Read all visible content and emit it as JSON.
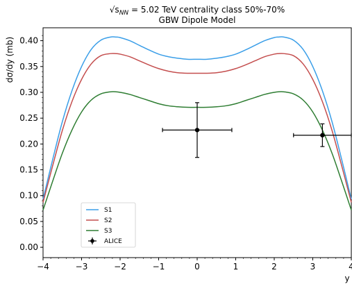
{
  "chart_data": {
    "type": "line",
    "title_prefix": "√s",
    "title_subscript": "NN",
    "title_rest": " = 5.02 TeV centrality class 50%-70%",
    "subtitle": "GBW Dipole Model",
    "xlabel": "y",
    "ylabel": "dσ/dy (mb)",
    "xlim": [
      -4,
      4
    ],
    "ylim": [
      -0.02,
      0.425
    ],
    "xticks": [
      "−4",
      "−3",
      "−2",
      "−1",
      "0",
      "1",
      "2",
      "3",
      "4"
    ],
    "yticks": [
      "0.00",
      "0.05",
      "0.10",
      "0.15",
      "0.20",
      "0.25",
      "0.30",
      "0.35",
      "0.40"
    ],
    "legend_position": "lower-left",
    "series": [
      {
        "name": "S1",
        "color": "#3a9ee8",
        "x": [
          -4.0,
          -3.75,
          -3.5,
          -3.25,
          -3.0,
          -2.75,
          -2.5,
          -2.25,
          -2.1,
          -2.0,
          -1.75,
          -1.5,
          -1.25,
          -1.0,
          -0.75,
          -0.5,
          -0.25,
          0.0,
          0.25,
          0.5,
          0.75,
          1.0,
          1.25,
          1.5,
          1.75,
          2.0,
          2.1,
          2.25,
          2.5,
          2.75,
          3.0,
          3.25,
          3.5,
          3.75,
          4.0
        ],
        "y": [
          0.093,
          0.17,
          0.243,
          0.303,
          0.35,
          0.383,
          0.401,
          0.407,
          0.407,
          0.406,
          0.4,
          0.391,
          0.382,
          0.374,
          0.369,
          0.366,
          0.364,
          0.364,
          0.364,
          0.366,
          0.369,
          0.374,
          0.382,
          0.391,
          0.4,
          0.406,
          0.407,
          0.407,
          0.401,
          0.383,
          0.35,
          0.303,
          0.243,
          0.17,
          0.093
        ]
      },
      {
        "name": "S2",
        "color": "#c44e4e",
        "x": [
          -4.0,
          -3.75,
          -3.5,
          -3.25,
          -3.0,
          -2.75,
          -2.5,
          -2.25,
          -2.1,
          -2.0,
          -1.75,
          -1.5,
          -1.25,
          -1.0,
          -0.75,
          -0.5,
          -0.25,
          0.0,
          0.25,
          0.5,
          0.75,
          1.0,
          1.25,
          1.5,
          1.75,
          2.0,
          2.1,
          2.25,
          2.5,
          2.75,
          3.0,
          3.25,
          3.5,
          3.75,
          4.0
        ],
        "y": [
          0.087,
          0.158,
          0.226,
          0.282,
          0.325,
          0.355,
          0.371,
          0.375,
          0.375,
          0.374,
          0.369,
          0.361,
          0.353,
          0.346,
          0.341,
          0.338,
          0.337,
          0.337,
          0.337,
          0.338,
          0.341,
          0.346,
          0.353,
          0.361,
          0.369,
          0.374,
          0.375,
          0.375,
          0.371,
          0.355,
          0.325,
          0.282,
          0.226,
          0.158,
          0.087
        ]
      },
      {
        "name": "S3",
        "color": "#2e7d32",
        "x": [
          -4.0,
          -3.75,
          -3.5,
          -3.25,
          -3.0,
          -2.75,
          -2.5,
          -2.25,
          -2.1,
          -2.0,
          -1.75,
          -1.5,
          -1.25,
          -1.0,
          -0.75,
          -0.5,
          -0.25,
          0.0,
          0.25,
          0.5,
          0.75,
          1.0,
          1.25,
          1.5,
          1.75,
          2.0,
          2.1,
          2.25,
          2.5,
          2.75,
          3.0,
          3.25,
          3.5,
          3.75,
          4.0
        ],
        "y": [
          0.072,
          0.128,
          0.182,
          0.227,
          0.262,
          0.285,
          0.297,
          0.301,
          0.301,
          0.3,
          0.296,
          0.29,
          0.284,
          0.278,
          0.274,
          0.272,
          0.271,
          0.271,
          0.271,
          0.272,
          0.274,
          0.278,
          0.284,
          0.29,
          0.296,
          0.3,
          0.301,
          0.301,
          0.297,
          0.285,
          0.262,
          0.227,
          0.182,
          0.128,
          0.072
        ]
      }
    ],
    "data_points": {
      "name": "ALICE",
      "color": "#000000",
      "points": [
        {
          "x": 0.0,
          "y": 0.227,
          "xerr": 0.9,
          "yerr": 0.053
        },
        {
          "x": 3.25,
          "y": 0.217,
          "xerr": 0.75,
          "yerr": 0.022
        }
      ]
    }
  }
}
